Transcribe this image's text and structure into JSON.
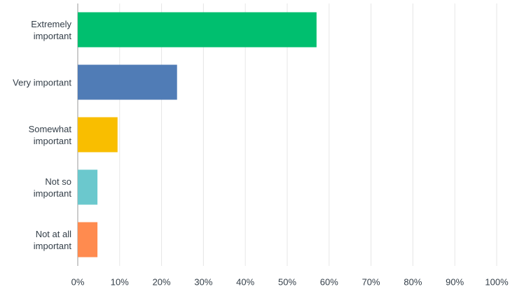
{
  "chart_data": {
    "type": "bar",
    "orientation": "horizontal",
    "categories": [
      "Extremely important",
      "Very important",
      "Somewhat important",
      "Not so important",
      "Not at all important"
    ],
    "values": [
      57.0,
      23.7,
      9.5,
      4.7,
      4.7
    ],
    "colors": [
      "#00bf6f",
      "#507cb6",
      "#f9be00",
      "#6bc8cd",
      "#ff8b4f"
    ],
    "xlim": [
      0,
      100
    ],
    "xticks": [
      {
        "value": 0,
        "label": "0%"
      },
      {
        "value": 10,
        "label": "10%"
      },
      {
        "value": 20,
        "label": "20%"
      },
      {
        "value": 30,
        "label": "30%"
      },
      {
        "value": 40,
        "label": "40%"
      },
      {
        "value": 50,
        "label": "50%"
      },
      {
        "value": 60,
        "label": "60%"
      },
      {
        "value": 70,
        "label": "70%"
      },
      {
        "value": 80,
        "label": "80%"
      },
      {
        "value": 90,
        "label": "90%"
      },
      {
        "value": 100,
        "label": "100%"
      }
    ],
    "grid": true
  }
}
